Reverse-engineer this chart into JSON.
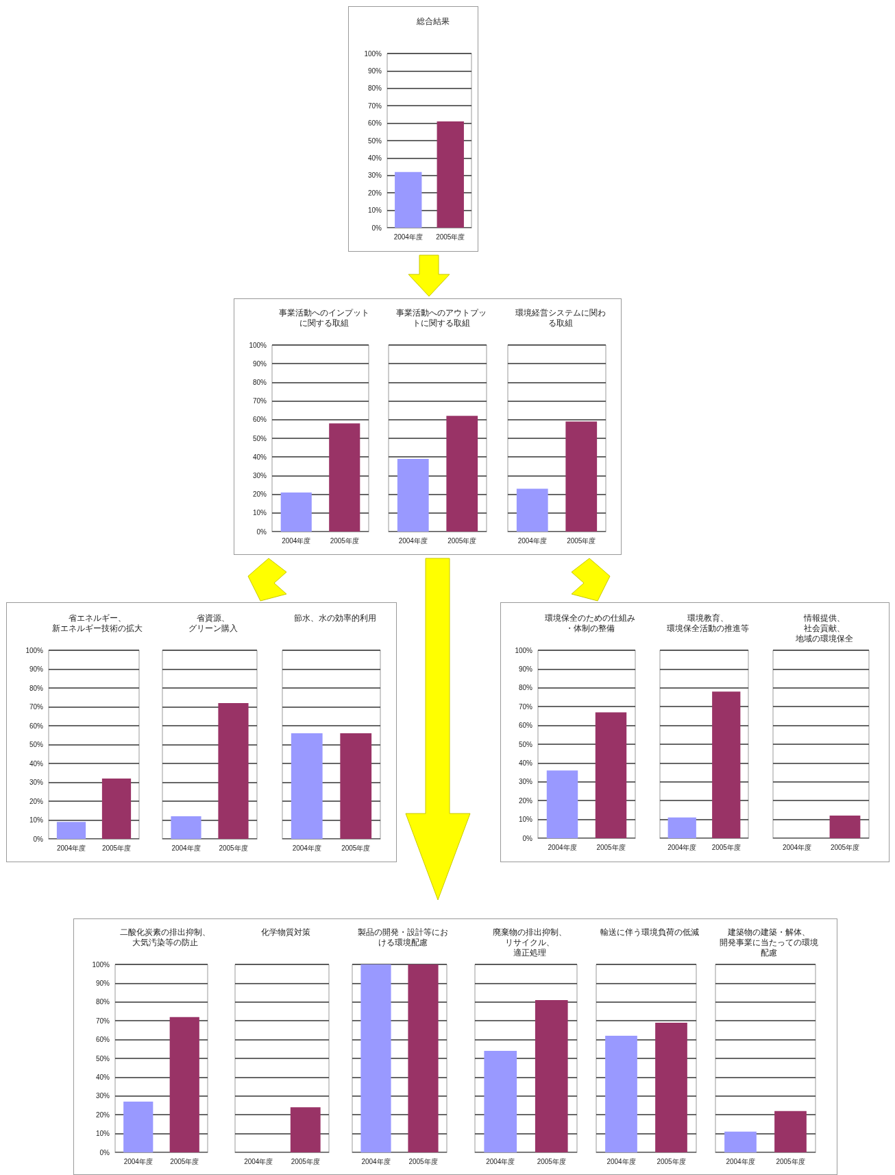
{
  "chart_data": [
    {
      "type": "bar",
      "title": "総合結果",
      "categories": [
        "2004年度",
        "2005年度"
      ],
      "values": [
        32,
        61
      ],
      "colors": [
        "#9999ff",
        "#993366"
      ],
      "ylim": [
        0,
        100
      ],
      "yticks": [
        {
          "value": 0,
          "label": "0%"
        },
        {
          "value": 10,
          "label": "10%"
        },
        {
          "value": 20,
          "label": "20%"
        },
        {
          "value": 30,
          "label": "30%"
        },
        {
          "value": 40,
          "label": "40%"
        },
        {
          "value": 50,
          "label": "50%"
        },
        {
          "value": 60,
          "label": "60%"
        },
        {
          "value": 70,
          "label": "70%"
        },
        {
          "value": 80,
          "label": "80%"
        },
        {
          "value": 90,
          "label": "90%"
        },
        {
          "value": 100,
          "label": "100%"
        }
      ],
      "grid": "y"
    },
    {
      "type": "bar",
      "title": "事業活動へのインプットに関する取組",
      "categories": [
        "2004年度",
        "2005年度"
      ],
      "values": [
        21,
        58
      ],
      "colors": [
        "#9999ff",
        "#993366"
      ],
      "ylim": [
        0,
        100
      ],
      "yticks": [
        {
          "value": 0,
          "label": "0%"
        },
        {
          "value": 10,
          "label": "10%"
        },
        {
          "value": 20,
          "label": "20%"
        },
        {
          "value": 30,
          "label": "30%"
        },
        {
          "value": 40,
          "label": "40%"
        },
        {
          "value": 50,
          "label": "50%"
        },
        {
          "value": 60,
          "label": "60%"
        },
        {
          "value": 70,
          "label": "70%"
        },
        {
          "value": 80,
          "label": "80%"
        },
        {
          "value": 90,
          "label": "90%"
        },
        {
          "value": 100,
          "label": "100%"
        }
      ],
      "grid": "y"
    },
    {
      "type": "bar",
      "title": "事業活動へのアウトプットに関する取組",
      "categories": [
        "2004年度",
        "2005年度"
      ],
      "values": [
        39,
        62
      ],
      "colors": [
        "#9999ff",
        "#993366"
      ],
      "ylim": [
        0,
        100
      ],
      "yticks": [
        0,
        10,
        20,
        30,
        40,
        50,
        60,
        70,
        80,
        90,
        100
      ],
      "grid": "y",
      "tick_labels": "x"
    },
    {
      "type": "bar",
      "title": "環境経営システムに関わる取組",
      "categories": [
        "2004年度",
        "2005年度"
      ],
      "values": [
        23,
        59
      ],
      "colors": [
        "#9999ff",
        "#993366"
      ],
      "ylim": [
        0,
        100
      ],
      "yticks": [
        0,
        10,
        20,
        30,
        40,
        50,
        60,
        70,
        80,
        90,
        100
      ],
      "grid": "y",
      "tick_labels": "x"
    },
    {
      "type": "bar",
      "title": "省エネルギー、新エネルギー技術の拡大",
      "categories": [
        "2004年度",
        "2005年度"
      ],
      "values": [
        9,
        32
      ],
      "colors": [
        "#9999ff",
        "#993366"
      ],
      "ylim": [
        0,
        100
      ],
      "yticks": [
        {
          "value": 0,
          "label": "0%"
        },
        {
          "value": 10,
          "label": "10%"
        },
        {
          "value": 20,
          "label": "20%"
        },
        {
          "value": 30,
          "label": "30%"
        },
        {
          "value": 40,
          "label": "40%"
        },
        {
          "value": 50,
          "label": "50%"
        },
        {
          "value": 60,
          "label": "60%"
        },
        {
          "value": 70,
          "label": "70%"
        },
        {
          "value": 80,
          "label": "80%"
        },
        {
          "value": 90,
          "label": "90%"
        },
        {
          "value": 100,
          "label": "100%"
        }
      ],
      "grid": "y"
    },
    {
      "type": "bar",
      "title": "省資源、グリーン購入",
      "categories": [
        "2004年度",
        "2005年度"
      ],
      "values": [
        12,
        72
      ],
      "colors": [
        "#9999ff",
        "#993366"
      ],
      "ylim": [
        0,
        100
      ],
      "yticks": [
        0,
        10,
        20,
        30,
        40,
        50,
        60,
        70,
        80,
        90,
        100
      ],
      "grid": "y",
      "tick_labels": "x"
    },
    {
      "type": "bar",
      "title": "節水、水の効率的利用",
      "categories": [
        "2004年度",
        "2005年度"
      ],
      "values": [
        56,
        56
      ],
      "colors": [
        "#9999ff",
        "#993366"
      ],
      "ylim": [
        0,
        100
      ],
      "yticks": [
        0,
        10,
        20,
        30,
        40,
        50,
        60,
        70,
        80,
        90,
        100
      ],
      "grid": "y",
      "tick_labels": "x"
    },
    {
      "type": "bar",
      "title": "環境保全のための仕組み・体制の整備",
      "categories": [
        "2004年度",
        "2005年度"
      ],
      "values": [
        36,
        67
      ],
      "colors": [
        "#9999ff",
        "#993366"
      ],
      "ylim": [
        0,
        100
      ],
      "yticks": [
        {
          "value": 0,
          "label": "0%"
        },
        {
          "value": 10,
          "label": "10%"
        },
        {
          "value": 20,
          "label": "20%"
        },
        {
          "value": 30,
          "label": "30%"
        },
        {
          "value": 40,
          "label": "40%"
        },
        {
          "value": 50,
          "label": "50%"
        },
        {
          "value": 60,
          "label": "60%"
        },
        {
          "value": 70,
          "label": "70%"
        },
        {
          "value": 80,
          "label": "80%"
        },
        {
          "value": 90,
          "label": "90%"
        },
        {
          "value": 100,
          "label": "100%"
        }
      ],
      "grid": "y"
    },
    {
      "type": "bar",
      "title": "環境教育、環境保全活動の推進等",
      "categories": [
        "2004年度",
        "2005年度"
      ],
      "values": [
        11,
        78
      ],
      "colors": [
        "#9999ff",
        "#993366"
      ],
      "ylim": [
        0,
        100
      ],
      "yticks": [
        0,
        10,
        20,
        30,
        40,
        50,
        60,
        70,
        80,
        90,
        100
      ],
      "grid": "y",
      "tick_labels": "x"
    },
    {
      "type": "bar",
      "title": "情報提供、社会貢献、地域の環境保全",
      "categories": [
        "2004年度",
        "2005年度"
      ],
      "values": [
        0,
        12
      ],
      "colors": [
        "#9999ff",
        "#993366"
      ],
      "ylim": [
        0,
        100
      ],
      "yticks": [
        0,
        10,
        20,
        30,
        40,
        50,
        60,
        70,
        80,
        90,
        100
      ],
      "grid": "y",
      "tick_labels": "x"
    },
    {
      "type": "bar",
      "title": "二酸化炭素の排出抑制、大気汚染等の防止",
      "categories": [
        "2004年度",
        "2005年度"
      ],
      "values": [
        27,
        72
      ],
      "colors": [
        "#9999ff",
        "#993366"
      ],
      "ylim": [
        0,
        100
      ],
      "yticks": [
        {
          "value": 0,
          "label": "0%"
        },
        {
          "value": 10,
          "label": "10%"
        },
        {
          "value": 20,
          "label": "20%"
        },
        {
          "value": 30,
          "label": "30%"
        },
        {
          "value": 40,
          "label": "40%"
        },
        {
          "value": 50,
          "label": "50%"
        },
        {
          "value": 60,
          "label": "60%"
        },
        {
          "value": 70,
          "label": "70%"
        },
        {
          "value": 80,
          "label": "80%"
        },
        {
          "value": 90,
          "label": "90%"
        },
        {
          "value": 100,
          "label": "100%"
        }
      ],
      "grid": "y"
    },
    {
      "type": "bar",
      "title": "化学物質対策",
      "categories": [
        "2004年度",
        "2005年度"
      ],
      "values": [
        0,
        24
      ],
      "colors": [
        "#9999ff",
        "#993366"
      ],
      "ylim": [
        0,
        100
      ],
      "yticks": [
        0,
        10,
        20,
        30,
        40,
        50,
        60,
        70,
        80,
        90,
        100
      ],
      "grid": "y",
      "tick_labels": "x"
    },
    {
      "type": "bar",
      "title": "製品の開発・設計等における環境配慮",
      "categories": [
        "2004年度",
        "2005年度"
      ],
      "values": [
        100,
        100
      ],
      "colors": [
        "#9999ff",
        "#993366"
      ],
      "ylim": [
        0,
        100
      ],
      "yticks": [
        0,
        10,
        20,
        30,
        40,
        50,
        60,
        70,
        80,
        90,
        100
      ],
      "grid": "y",
      "tick_labels": "x"
    },
    {
      "type": "bar",
      "title": "廃棄物の排出抑制、リサイクル、適正処理",
      "categories": [
        "2004年度",
        "2005年度"
      ],
      "values": [
        54,
        81
      ],
      "colors": [
        "#9999ff",
        "#993366"
      ],
      "ylim": [
        0,
        100
      ],
      "yticks": [
        0,
        10,
        20,
        30,
        40,
        50,
        60,
        70,
        80,
        90,
        100
      ],
      "grid": "y",
      "tick_labels": "x"
    },
    {
      "type": "bar",
      "title": "輸送に伴う環境負荷の低減",
      "categories": [
        "2004年度",
        "2005年度"
      ],
      "values": [
        62,
        69
      ],
      "colors": [
        "#9999ff",
        "#993366"
      ],
      "ylim": [
        0,
        100
      ],
      "yticks": [
        0,
        10,
        20,
        30,
        40,
        50,
        60,
        70,
        80,
        90,
        100
      ],
      "grid": "y",
      "tick_labels": "x"
    },
    {
      "type": "bar",
      "title": "建築物の建築・解体、開発事業に当たっての環境配慮",
      "categories": [
        "2004年度",
        "2005年度"
      ],
      "values": [
        11,
        22
      ],
      "colors": [
        "#9999ff",
        "#993366"
      ],
      "ylim": [
        0,
        100
      ],
      "yticks": [
        0,
        10,
        20,
        30,
        40,
        50,
        60,
        70,
        80,
        90,
        100
      ],
      "grid": "y",
      "tick_labels": "x"
    }
  ]
}
